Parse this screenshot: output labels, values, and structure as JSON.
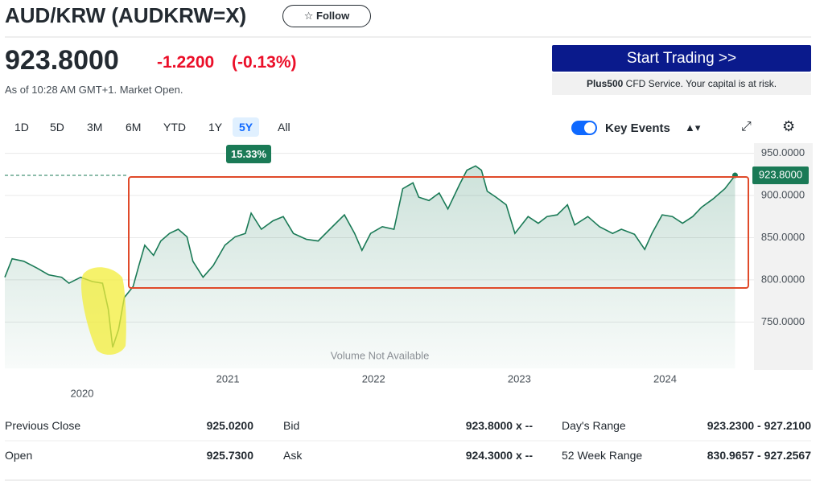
{
  "header": {
    "title": "AUD/KRW (AUDKRW=X)",
    "follow": "Follow"
  },
  "quote": {
    "price": "923.8000",
    "change": "-1.2200",
    "change_percent": "(-0.13%)",
    "as_of": "As of 10:28 AM GMT+1. Market Open."
  },
  "ad": {
    "button": "Start Trading >>",
    "brand": "Plus500",
    "note": "CFD Service. Your capital is at risk."
  },
  "ranges": [
    "1D",
    "5D",
    "3M",
    "6M",
    "YTD",
    "1Y",
    "5Y",
    "All"
  ],
  "selected_range": "5Y",
  "controls": {
    "key_events": "Key Events"
  },
  "chart_data": {
    "type": "line",
    "period_change": "15.33%",
    "note": "Volume Not Available",
    "color": "#1a7a56",
    "x": [
      2019.47,
      2019.52,
      2019.6,
      2019.69,
      2019.77,
      2019.86,
      2019.91,
      2019.99,
      2020.07,
      2020.14,
      2020.18,
      2020.21,
      2020.25,
      2020.29,
      2020.35,
      2020.39,
      2020.43,
      2020.49,
      2020.54,
      2020.6,
      2020.66,
      2020.72,
      2020.76,
      2020.83,
      2020.9,
      2020.98,
      2021.05,
      2021.12,
      2021.16,
      2021.23,
      2021.31,
      2021.38,
      2021.45,
      2021.54,
      2021.62,
      2021.7,
      2021.8,
      2021.87,
      2021.92,
      2021.98,
      2022.06,
      2022.14,
      2022.2,
      2022.27,
      2022.31,
      2022.38,
      2022.45,
      2022.51,
      2022.59,
      2022.64,
      2022.7,
      2022.74,
      2022.78,
      2022.84,
      2022.91,
      2022.97,
      2023.06,
      2023.13,
      2023.19,
      2023.26,
      2023.33,
      2023.38,
      2023.47,
      2023.55,
      2023.64,
      2023.7,
      2023.79,
      2023.86,
      2023.91,
      2023.98,
      2024.05,
      2024.12,
      2024.19,
      2024.25,
      2024.33,
      2024.41,
      2024.48
    ],
    "values": [
      803,
      825,
      822,
      814,
      806,
      803,
      796,
      803,
      798,
      796,
      765,
      720,
      741,
      779,
      792,
      817,
      841,
      829,
      846,
      855,
      860,
      851,
      822,
      803,
      817,
      841,
      851,
      855,
      879,
      860,
      870,
      875,
      855,
      848,
      846,
      860,
      877,
      855,
      835,
      855,
      863,
      860,
      908,
      915,
      898,
      894,
      903,
      884,
      913,
      930,
      935,
      930,
      905,
      898,
      889,
      855,
      875,
      867,
      875,
      877,
      889,
      865,
      875,
      863,
      855,
      860,
      854,
      836,
      855,
      877,
      875,
      867,
      875,
      886,
      896,
      908,
      923.8
    ],
    "current": {
      "value": 923.8,
      "label": "923.8000"
    },
    "xlim": [
      2019.47,
      2024.61
    ],
    "ylim": [
      695,
      962
    ],
    "xticks": [
      2020,
      2021,
      2022,
      2023,
      2024
    ],
    "yticks": [
      {
        "value": 750,
        "label": "750.0000"
      },
      {
        "value": 800,
        "label": "800.0000"
      },
      {
        "value": 850,
        "label": "850.0000"
      },
      {
        "value": 900,
        "label": "900.0000"
      },
      {
        "value": 950,
        "label": "950.0000"
      }
    ],
    "grid": true
  },
  "stats": {
    "rows": [
      [
        [
          "Previous Close",
          "925.0200"
        ],
        [
          "Bid",
          "923.8000 x --"
        ],
        [
          "Day's Range",
          "923.2300 - 927.2100"
        ]
      ],
      [
        [
          "Open",
          "925.7300"
        ],
        [
          "Ask",
          "924.3000 x --"
        ],
        [
          "52 Week Range",
          "830.9657 - 927.2567"
        ]
      ]
    ]
  }
}
